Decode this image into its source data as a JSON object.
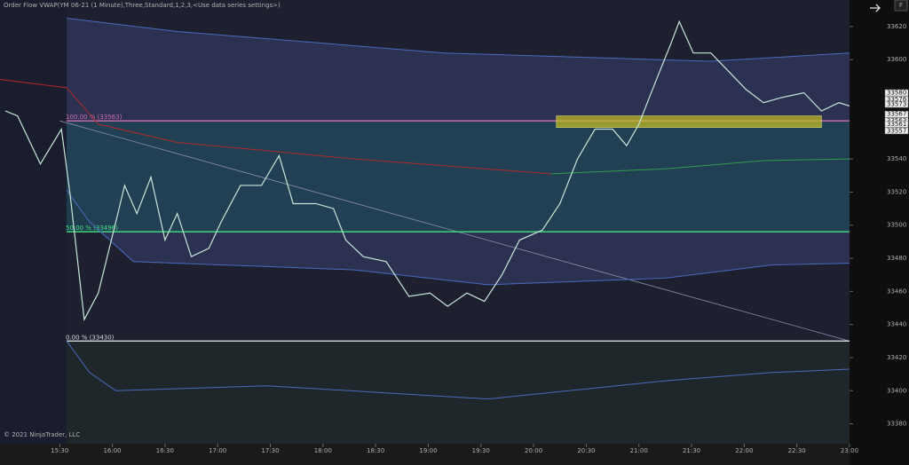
{
  "chart_data": {
    "type": "line",
    "title": "Order Flow VWAP(YM 06-21 (1 Minute),Three,Standard,1,2,3,<Use data series settings>)",
    "footer": "© 2021 NinjaTrader, LLC",
    "corner_label": "F",
    "xlim": [
      896,
      1380
    ],
    "xticks": [
      {
        "value": 930,
        "label": "15:30"
      },
      {
        "value": 960,
        "label": "16:00"
      },
      {
        "value": 990,
        "label": "16:30"
      },
      {
        "value": 1020,
        "label": "17:00"
      },
      {
        "value": 1050,
        "label": "17:30"
      },
      {
        "value": 1080,
        "label": "18:00"
      },
      {
        "value": 1110,
        "label": "18:30"
      },
      {
        "value": 1140,
        "label": "19:00"
      },
      {
        "value": 1170,
        "label": "19:30"
      },
      {
        "value": 1200,
        "label": "20:00"
      },
      {
        "value": 1230,
        "label": "20:30"
      },
      {
        "value": 1260,
        "label": "21:00"
      },
      {
        "value": 1290,
        "label": "21:30"
      },
      {
        "value": 1320,
        "label": "22:00"
      },
      {
        "value": 1350,
        "label": "22:30"
      },
      {
        "value": 1380,
        "label": "23:00"
      }
    ],
    "ylim": [
      33368,
      33636
    ],
    "yticks": [
      33380,
      33400,
      33420,
      33440,
      33460,
      33480,
      33500,
      33520,
      33540,
      33600,
      33620
    ],
    "price_labels": [
      33580,
      33576,
      33573,
      33567,
      33563,
      33561,
      33557
    ],
    "series": [
      {
        "color": "#4a6bbf",
        "x": [
          934,
          997,
          1149,
          1301,
          1380
        ],
        "values": [
          33625,
          33617,
          33604,
          33599,
          33604
        ]
      },
      {
        "color": "#4a6bbf",
        "x": [
          934,
          947,
          972,
          1098,
          1174,
          1275,
          1336,
          1380
        ],
        "values": [
          33521,
          33502,
          33478,
          33473,
          33464,
          33468,
          33476,
          33477
        ]
      },
      {
        "color": "#4a6bbf",
        "x": [
          934,
          947,
          962,
          1048,
          1174,
          1275,
          1336,
          1380
        ],
        "values": [
          33430,
          33411,
          33400,
          33403,
          33395,
          33406,
          33411,
          33413
        ]
      },
      {
        "color": "#b02a2a",
        "x": [
          896,
          934,
          952,
          997,
          1098,
          1210
        ],
        "values": [
          33588,
          33583,
          33561,
          33550,
          33540,
          33531
        ]
      },
      {
        "color": "#2e9e4a",
        "x": [
          1210,
          1275,
          1331,
          1380
        ],
        "values": [
          33531,
          33534,
          33539,
          33540
        ]
      },
      {
        "color": "#c8e6d8",
        "x": [
          899,
          906,
          919,
          931,
          936,
          944,
          952,
          962,
          967,
          974,
          982,
          990,
          997,
          1005,
          1015,
          1022,
          1033,
          1045,
          1055,
          1063,
          1076,
          1086,
          1093,
          1103,
          1116,
          1129,
          1141,
          1151,
          1162,
          1172,
          1182,
          1192,
          1205,
          1215,
          1225,
          1235,
          1245,
          1253,
          1260,
          1270,
          1278,
          1283,
          1291,
          1301,
          1311,
          1321,
          1331,
          1341,
          1354,
          1364,
          1374,
          1380
        ],
        "values": [
          33569,
          33566,
          33537,
          33558,
          33518,
          33443,
          33459,
          33502,
          33524,
          33507,
          33529,
          33491,
          33507,
          33481,
          33486,
          33502,
          33524,
          33524,
          33542,
          33513,
          33513,
          33510,
          33491,
          33481,
          33478,
          33457,
          33459,
          33451,
          33459,
          33454,
          33470,
          33491,
          33497,
          33513,
          33540,
          33558,
          33558,
          33548,
          33561,
          33588,
          33609,
          33623,
          33604,
          33604,
          33593,
          33582,
          33574,
          33577,
          33580,
          33569,
          33574,
          33572
        ]
      }
    ],
    "levels": [
      {
        "value": 33563,
        "label": "100.00 % (33563)",
        "color": "#d070b0"
      },
      {
        "value": 33496,
        "label": "50.00 % (33496)",
        "color": "#40e080"
      },
      {
        "value": 33430,
        "label": "0.00 % (33430)",
        "color": "#d8d8d8"
      }
    ],
    "trend_line": {
      "x": [
        930,
        1380
      ],
      "y": [
        33563,
        33430
      ],
      "color": "#8a8fa8"
    },
    "zone": {
      "x": [
        1213,
        1364
      ],
      "y": [
        33559,
        33566
      ],
      "color": "#c8c020"
    }
  }
}
